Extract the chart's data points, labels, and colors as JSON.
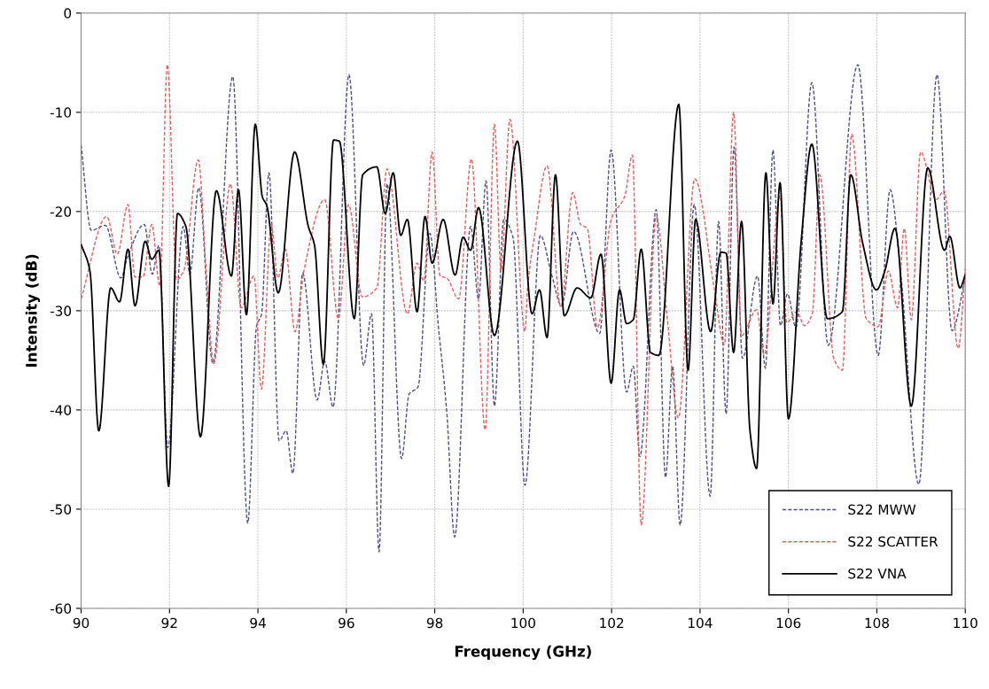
{
  "chart_data": {
    "type": "line",
    "xlabel": "Frequency (GHz)",
    "ylabel": "Intensity (dB)",
    "xlim": [
      90,
      110
    ],
    "xticks": [
      90,
      92,
      94,
      96,
      98,
      100,
      102,
      104,
      106,
      108,
      110
    ],
    "ylim": [
      -60,
      0
    ],
    "yticks": [
      -60,
      -50,
      -40,
      -30,
      -20,
      -10,
      0
    ],
    "grid": true,
    "legend": "bottom right",
    "marker": "none",
    "series": [
      {
        "name": "S22 MWW",
        "color": "#4f4f80",
        "line_style": "dashed",
        "x": [
          90.0,
          90.23,
          90.55,
          90.9,
          91.05,
          91.43,
          91.61,
          91.76,
          91.96,
          92.31,
          92.46,
          92.66,
          92.98,
          93.43,
          93.77,
          93.97,
          94.08,
          94.25,
          94.48,
          94.64,
          94.79,
          95.01,
          95.34,
          95.51,
          95.7,
          96.06,
          96.39,
          96.57,
          96.74,
          96.92,
          97.25,
          97.42,
          97.62,
          97.89,
          98.08,
          98.27,
          98.45,
          98.81,
          98.99,
          99.16,
          99.35,
          99.56,
          99.77,
          100.04,
          100.39,
          100.64,
          100.87,
          101.14,
          101.73,
          101.99,
          102.34,
          102.49,
          102.64,
          103.01,
          103.22,
          103.38,
          103.55,
          103.87,
          104.23,
          104.42,
          104.59,
          104.77,
          104.96,
          105.3,
          105.48,
          105.65,
          105.82,
          105.98,
          106.17,
          106.53,
          106.9,
          107.57,
          108.03,
          108.3,
          108.54,
          108.95,
          109.36,
          109.7,
          110.0
        ],
        "values": [
          -13.3,
          -21.9,
          -21.4,
          -26.7,
          -24.6,
          -21.3,
          -26.3,
          -23.4,
          -43.8,
          -21.5,
          -26.3,
          -17.6,
          -35.3,
          -6.4,
          -51.4,
          -31.5,
          -30.4,
          -16.1,
          -43.1,
          -42.1,
          -46.4,
          -26.2,
          -39.0,
          -35.1,
          -39.7,
          -6.2,
          -35.5,
          -30.3,
          -54.3,
          -17.2,
          -44.9,
          -38.4,
          -37.7,
          -22.2,
          -31.5,
          -40.1,
          -52.8,
          -21.5,
          -28.8,
          -16.9,
          -39.6,
          -20.8,
          -22.6,
          -47.6,
          -22.4,
          -26.3,
          -29.5,
          -22.0,
          -32.3,
          -13.8,
          -38.2,
          -35.6,
          -44.7,
          -19.8,
          -46.8,
          -35.6,
          -51.6,
          -19.3,
          -48.7,
          -21.0,
          -40.4,
          -13.5,
          -34.8,
          -26.5,
          -35.8,
          -13.8,
          -31.5,
          -28.3,
          -31.7,
          -7.0,
          -33.5,
          -5.2,
          -34.5,
          -17.8,
          -26.2,
          -47.5,
          -6.2,
          -32.0,
          -26.7
        ]
      },
      {
        "name": "S22 SCATTER",
        "color": "#e06060",
        "line_style": "dashed",
        "x": [
          90.0,
          90.58,
          90.82,
          91.06,
          91.22,
          91.4,
          91.6,
          91.78,
          91.95,
          92.16,
          92.32,
          92.65,
          92.83,
          93.0,
          93.38,
          93.62,
          93.91,
          94.08,
          94.3,
          94.45,
          94.62,
          94.84,
          95.04,
          95.51,
          95.82,
          96.05,
          96.36,
          96.69,
          96.92,
          97.38,
          97.6,
          97.75,
          97.94,
          98.12,
          98.27,
          98.54,
          98.83,
          99.14,
          99.35,
          99.5,
          99.7,
          100.04,
          100.1,
          100.25,
          100.54,
          100.85,
          101.12,
          101.3,
          101.45,
          101.68,
          101.99,
          102.3,
          102.47,
          102.67,
          103.01,
          103.26,
          103.51,
          103.88,
          104.32,
          104.55,
          104.76,
          104.94,
          105.28,
          105.45,
          105.81,
          105.96,
          106.19,
          106.36,
          106.54,
          106.71,
          107.03,
          107.22,
          107.43,
          107.76,
          108.03,
          108.26,
          108.47,
          108.62,
          108.78,
          108.99,
          109.34,
          109.52,
          109.84,
          110.0
        ],
        "values": [
          -28.8,
          -20.5,
          -24.3,
          -19.3,
          -26.6,
          -26.6,
          -21.3,
          -27.5,
          -5.2,
          -26.9,
          -26.0,
          -14.8,
          -26.0,
          -35.3,
          -17.2,
          -29.7,
          -26.5,
          -37.9,
          -21.3,
          -26.7,
          -23.8,
          -32.1,
          -26.0,
          -18.8,
          -30.8,
          -19.3,
          -28.6,
          -27.7,
          -15.7,
          -30.3,
          -25.2,
          -27.0,
          -14.0,
          -26.5,
          -26.7,
          -28.8,
          -14.7,
          -42.0,
          -11.2,
          -26.0,
          -10.7,
          -32.1,
          -27.7,
          -22.6,
          -15.4,
          -29.6,
          -18.1,
          -21.3,
          -21.7,
          -31.7,
          -20.8,
          -18.4,
          -14.3,
          -51.6,
          -20.5,
          -30.8,
          -40.8,
          -16.7,
          -27.7,
          -33.4,
          -10.0,
          -32.5,
          -29.9,
          -34.4,
          -18.4,
          -31.2,
          -30.1,
          -31.5,
          -30.3,
          -16.3,
          -34.9,
          -36.0,
          -12.2,
          -30.8,
          -31.6,
          -26.0,
          -29.7,
          -21.7,
          -30.9,
          -14.0,
          -18.8,
          -17.9,
          -33.8,
          -25.8
        ]
      },
      {
        "name": "S22 VNA",
        "color": "#000000",
        "line_style": "solid",
        "x": [
          90.0,
          90.2,
          90.4,
          90.67,
          90.87,
          91.06,
          91.22,
          91.45,
          91.6,
          91.76,
          91.98,
          92.18,
          92.37,
          92.7,
          93.06,
          93.4,
          93.56,
          93.74,
          93.94,
          94.1,
          94.2,
          94.46,
          94.83,
          95.14,
          95.28,
          95.48,
          95.71,
          95.84,
          96.18,
          96.37,
          96.69,
          96.88,
          97.06,
          97.23,
          97.38,
          97.6,
          97.78,
          97.94,
          98.19,
          98.46,
          98.64,
          98.81,
          98.99,
          99.35,
          99.87,
          100.2,
          100.37,
          100.54,
          100.73,
          100.93,
          101.22,
          101.53,
          101.76,
          101.99,
          102.18,
          102.34,
          102.49,
          102.67,
          102.88,
          103.07,
          103.52,
          103.73,
          103.9,
          104.24,
          104.47,
          104.59,
          104.76,
          104.94,
          105.13,
          105.28,
          105.49,
          105.65,
          105.81,
          106.0,
          106.29,
          106.53,
          106.88,
          107.22,
          107.41,
          107.68,
          107.99,
          108.18,
          108.41,
          108.78,
          109.15,
          109.53,
          109.65,
          109.88,
          110.0
        ],
        "values": [
          -23.3,
          -26.0,
          -42.1,
          -27.7,
          -29.1,
          -23.8,
          -29.5,
          -23.0,
          -24.8,
          -23.9,
          -47.7,
          -20.2,
          -21.5,
          -42.7,
          -17.9,
          -26.5,
          -17.8,
          -30.4,
          -11.2,
          -18.5,
          -19.4,
          -28.2,
          -14.0,
          -21.5,
          -23.4,
          -35.4,
          -12.8,
          -12.9,
          -30.8,
          -16.3,
          -15.5,
          -20.2,
          -16.1,
          -22.4,
          -20.8,
          -30.1,
          -20.5,
          -25.2,
          -20.8,
          -26.4,
          -22.6,
          -23.9,
          -19.6,
          -32.5,
          -12.9,
          -30.3,
          -27.9,
          -32.7,
          -16.3,
          -30.5,
          -27.7,
          -28.7,
          -24.3,
          -37.3,
          -27.9,
          -31.3,
          -30.9,
          -23.8,
          -34.2,
          -34.5,
          -9.2,
          -36.0,
          -20.8,
          -32.1,
          -24.1,
          -24.2,
          -34.2,
          -21.0,
          -42.1,
          -45.9,
          -16.1,
          -29.3,
          -17.1,
          -40.9,
          -22.9,
          -13.2,
          -30.8,
          -30.1,
          -16.3,
          -23.2,
          -27.9,
          -26.0,
          -21.7,
          -39.6,
          -15.6,
          -23.9,
          -22.5,
          -27.7,
          -26.4
        ]
      }
    ]
  }
}
